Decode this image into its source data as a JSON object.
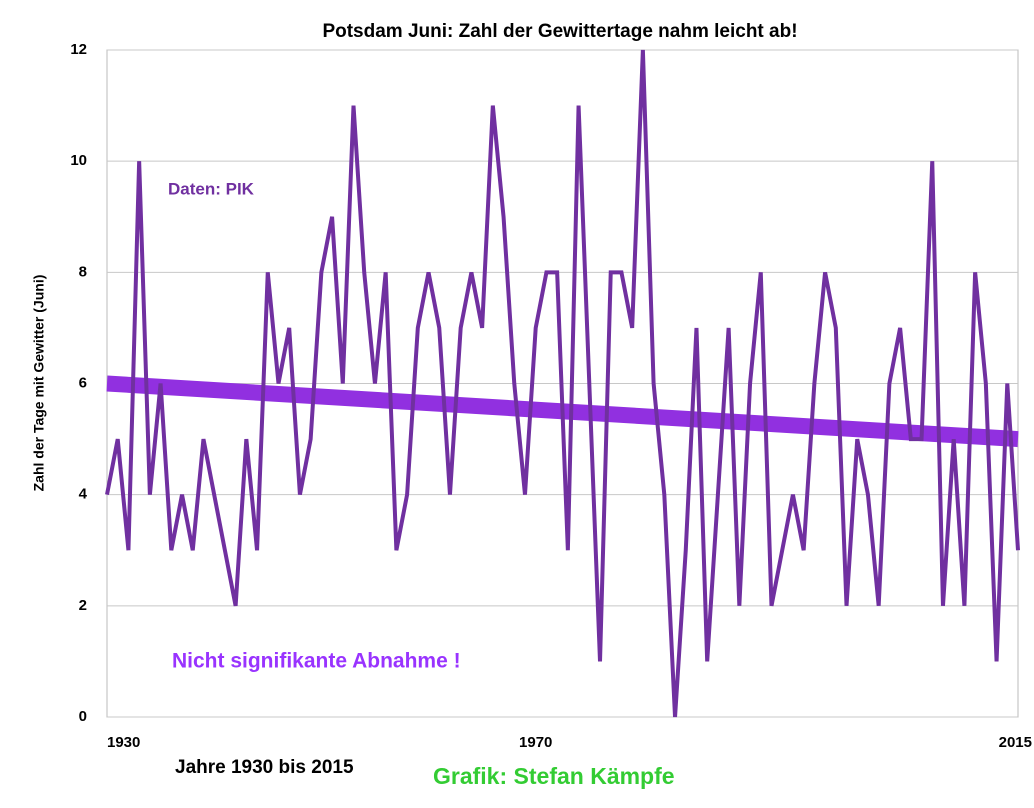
{
  "chart_data": {
    "type": "line",
    "title": "Potsdam Juni: Zahl der Gewittertage nahm leicht ab!",
    "ylabel": "Zahl der Tage mit Gewitter (Juni)",
    "xlabel": "Jahre 1930 bis 2015",
    "annotations": [
      "Daten: PIK",
      "Nicht signifikante Abnahme !",
      "Grafik: Stefan Kämpfe"
    ],
    "x": [
      1930,
      1931,
      1932,
      1933,
      1934,
      1935,
      1936,
      1937,
      1938,
      1939,
      1940,
      1941,
      1942,
      1943,
      1944,
      1945,
      1946,
      1947,
      1948,
      1949,
      1950,
      1951,
      1952,
      1953,
      1954,
      1955,
      1956,
      1957,
      1958,
      1959,
      1960,
      1961,
      1962,
      1963,
      1964,
      1965,
      1966,
      1967,
      1968,
      1969,
      1970,
      1971,
      1972,
      1973,
      1974,
      1975,
      1976,
      1977,
      1978,
      1979,
      1980,
      1981,
      1982,
      1983,
      1984,
      1985,
      1986,
      1987,
      1988,
      1989,
      1990,
      1991,
      1992,
      1993,
      1994,
      1995,
      1996,
      1997,
      1998,
      1999,
      2000,
      2001,
      2002,
      2003,
      2004,
      2005,
      2006,
      2007,
      2008,
      2009,
      2010,
      2011,
      2012,
      2013,
      2014,
      2015
    ],
    "series": [
      {
        "color": "#7030a0",
        "values": [
          4,
          5,
          3,
          10,
          4,
          6,
          3,
          4,
          3,
          5,
          4,
          3,
          2,
          5,
          3,
          8,
          6,
          7,
          4,
          5,
          8,
          9,
          6,
          11,
          8,
          6,
          8,
          3,
          4,
          7,
          8,
          7,
          4,
          7,
          8,
          7,
          11,
          9,
          6,
          4,
          7,
          8,
          8,
          3,
          11,
          6,
          1,
          8,
          8,
          7,
          12,
          6,
          4,
          0,
          3,
          7,
          1,
          4,
          7,
          2,
          6,
          8,
          2,
          3,
          4,
          3,
          6,
          8,
          7,
          2,
          5,
          4,
          2,
          6,
          7,
          5,
          5,
          10,
          2,
          5,
          2,
          8,
          6,
          1,
          6,
          3
        ]
      }
    ],
    "trend": {
      "color": "#9130e0",
      "x": [
        1930,
        2015
      ],
      "values": [
        6,
        5
      ]
    },
    "xlim": [
      1930,
      2015
    ],
    "xticks": [
      1930,
      1970,
      2015
    ],
    "ylim": [
      0,
      12
    ],
    "yticks": [
      0,
      2,
      4,
      6,
      8,
      10,
      12
    ],
    "grid": true
  }
}
